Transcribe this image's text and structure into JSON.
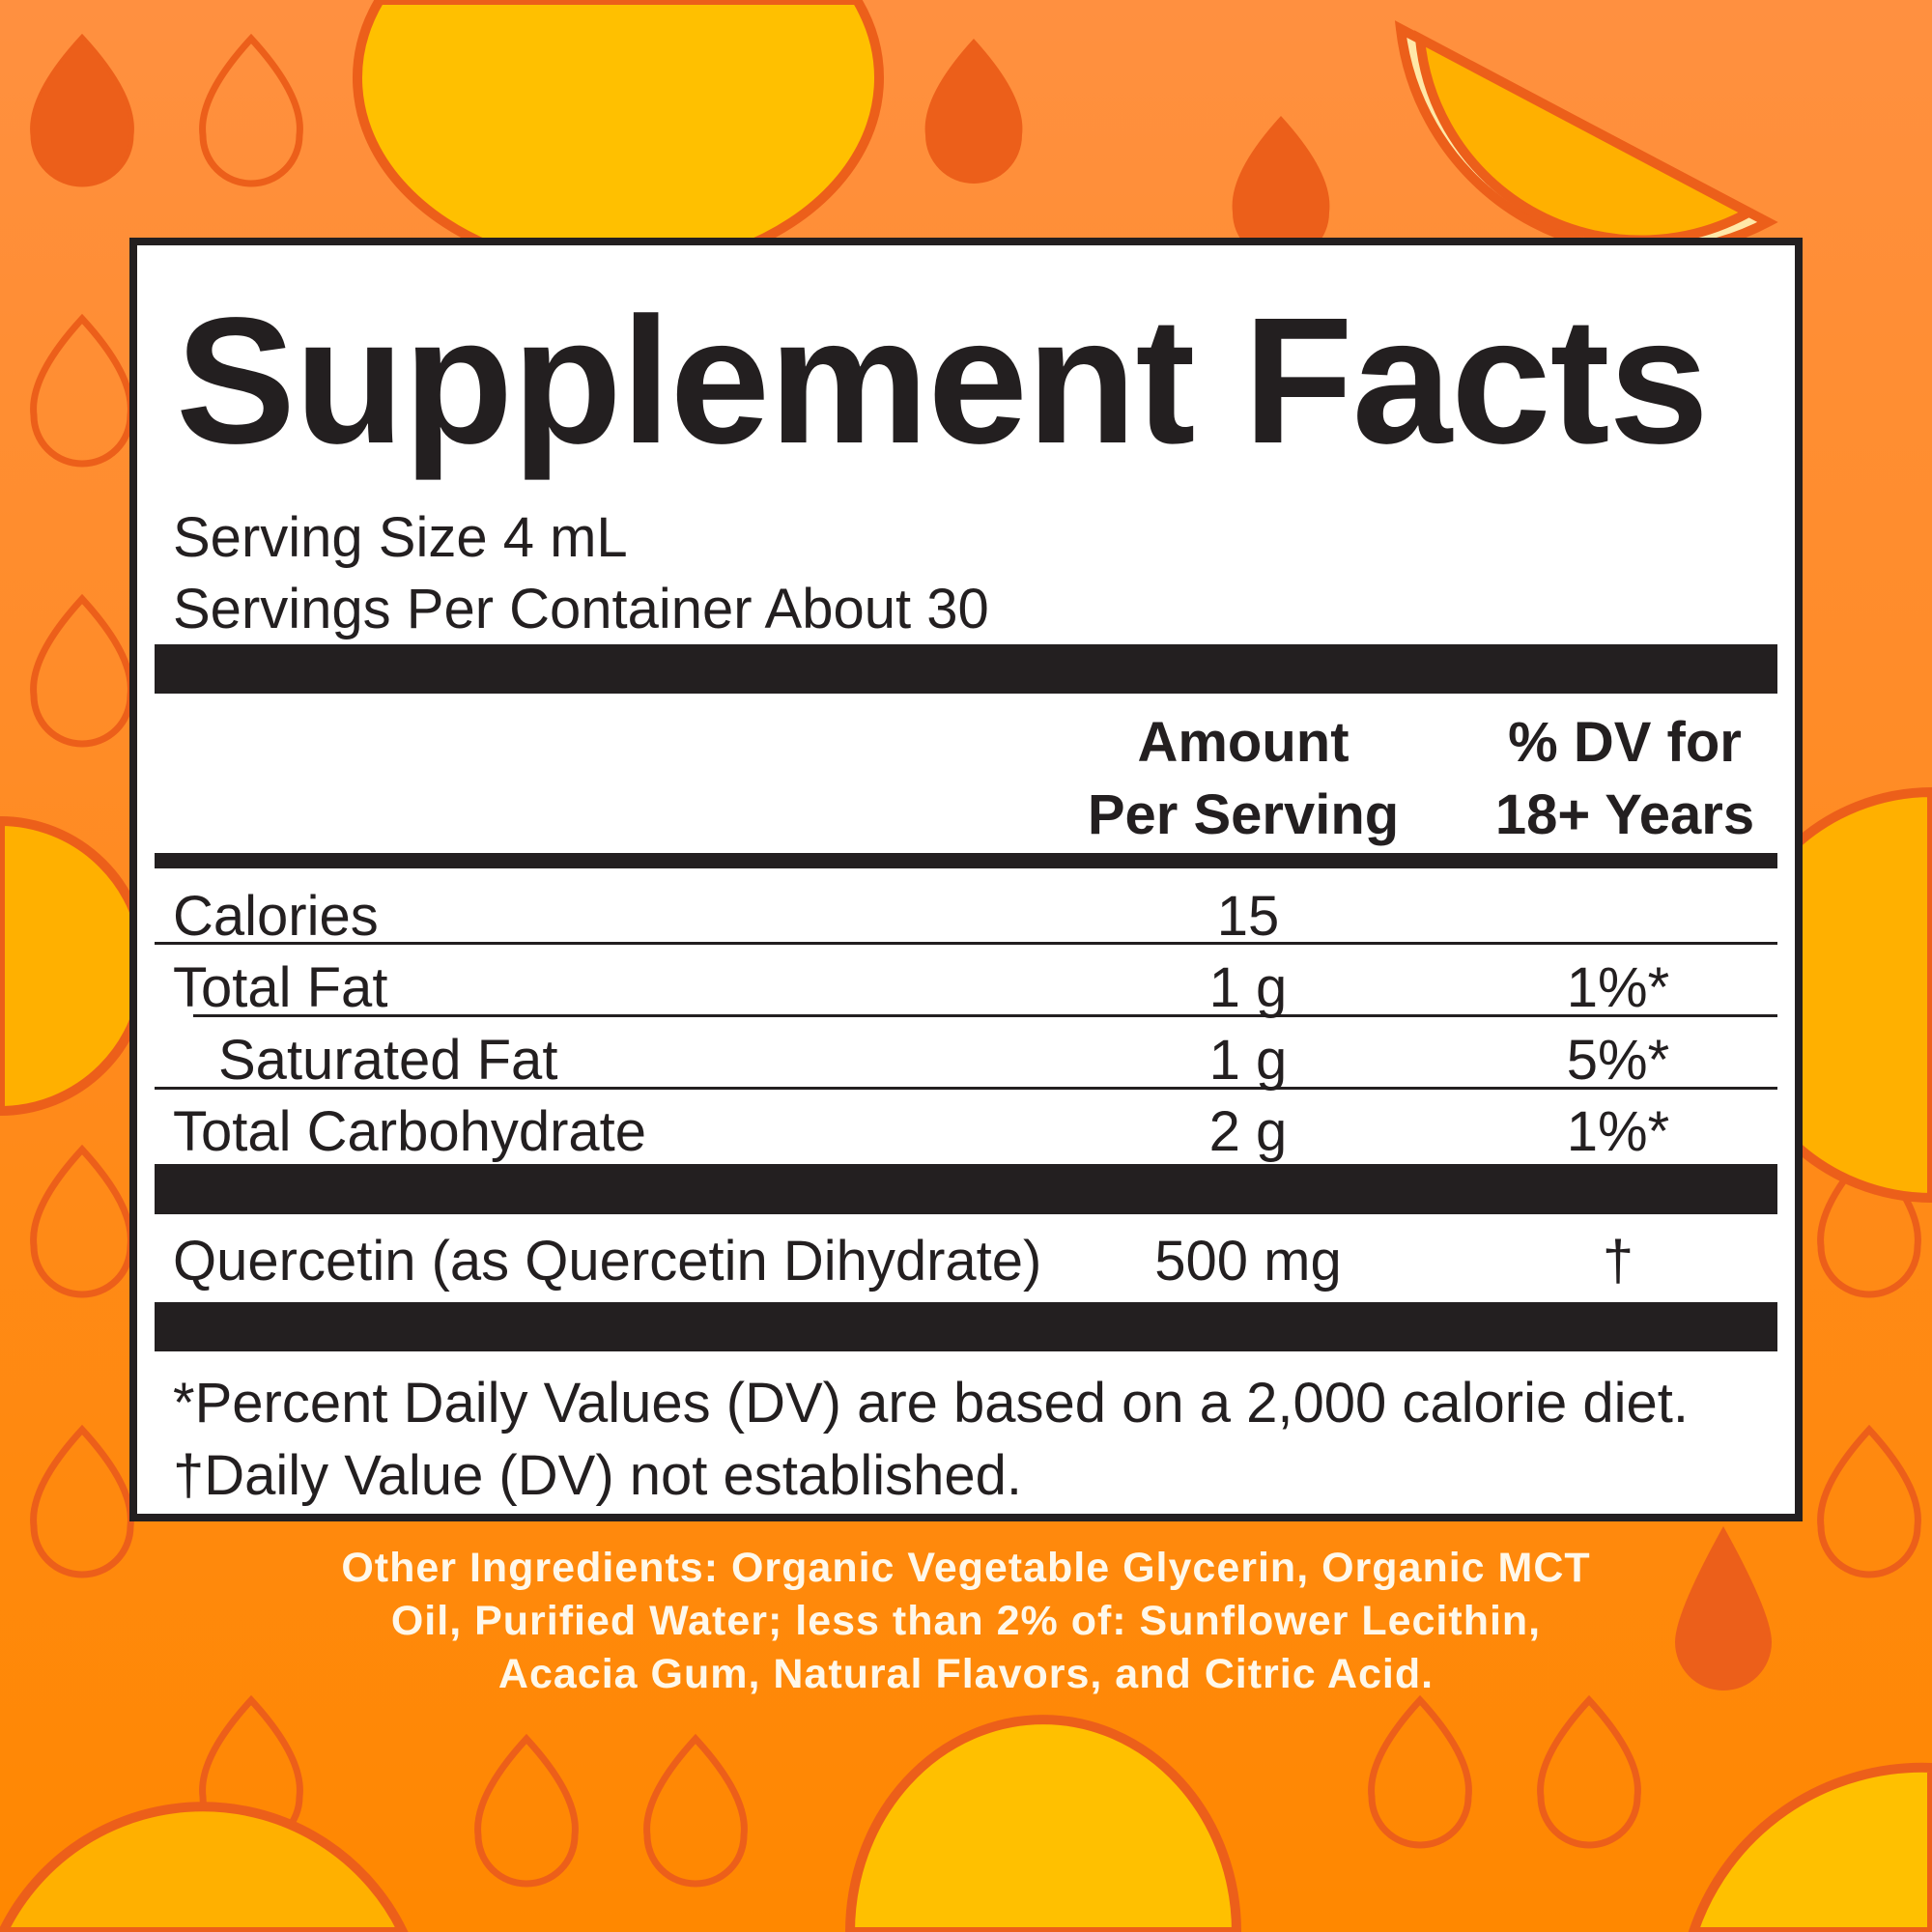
{
  "colors": {
    "background": "#ff8a1c",
    "drop": "#ec5f1a",
    "fruit": "#ffc000",
    "panel": "#ffffff",
    "ink": "#231f20",
    "ingredients_text": "#fff8ea"
  },
  "title": "Supplement Facts",
  "serving_size": "Serving Size 4 mL",
  "servings_per_container": "Servings Per Container About 30",
  "headers": {
    "amount_line1": "Amount",
    "amount_line2": "Per Serving",
    "dv_line1": "% DV for",
    "dv_line2": "18+ Years"
  },
  "rows": [
    {
      "name": "Calories",
      "amount": "15",
      "dv": ""
    },
    {
      "name": "Total Fat",
      "amount": "1 g",
      "dv": "1%*"
    },
    {
      "name": "Saturated Fat",
      "amount": "1 g",
      "dv": "5%*"
    },
    {
      "name": "Total Carbohydrate",
      "amount": "2 g",
      "dv": "1%*"
    }
  ],
  "active": {
    "name": "Quercetin (as Quercetin Dihydrate)",
    "amount": "500 mg",
    "dv": "†"
  },
  "footnotes": [
    "*Percent Daily Values (DV) are based on a 2,000 calorie diet.",
    "†Daily Value (DV) not established."
  ],
  "other_ingredients": [
    "Other Ingredients: Organic Vegetable Glycerin, Organic MCT",
    "Oil, Purified Water; less than 2% of: Sunflower Lecithin,",
    "Acacia Gum, Natural Flavors, and Citric Acid."
  ]
}
